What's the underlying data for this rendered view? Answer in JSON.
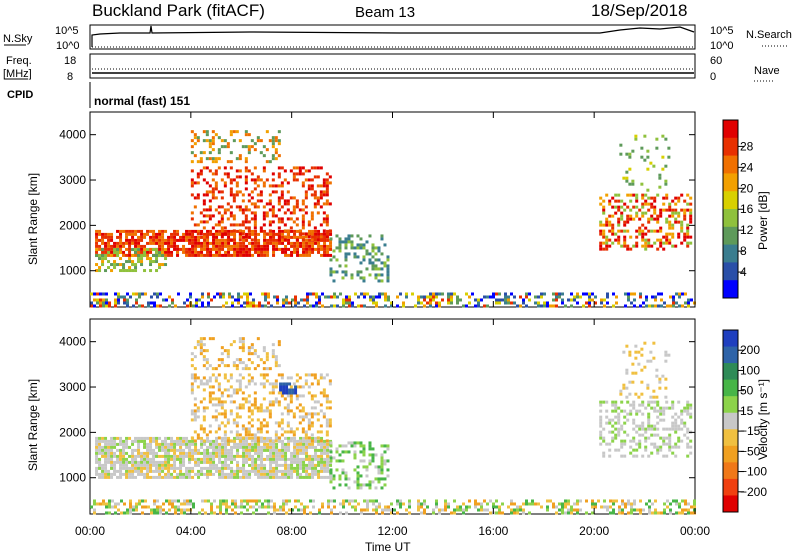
{
  "header": {
    "station": "Buckland Park (fitACF)",
    "beam": "Beam 13",
    "date": "18/Sep/2018"
  },
  "status_panels": {
    "nsky_label": "N.Sky",
    "nsearch_label": "N.Search",
    "freq_label": "Freq.",
    "freq_unit": "[MHz]",
    "nave_label": "Nave",
    "cpid_label": "CPID",
    "cpid_value": "normal (fast) 151",
    "nsky_ticks": [
      "10^5",
      "10^0"
    ],
    "nsearch_ticks": [
      "10^5",
      "10^0"
    ],
    "freq_ticks": [
      "18",
      "8"
    ],
    "nave_ticks": [
      "60",
      "0"
    ]
  },
  "chart_data": [
    {
      "type": "heatmap",
      "title": "",
      "xlabel": "Time UT",
      "ylabel": "Slant Range [km]",
      "x_ticks": [
        "00:00",
        "04:00",
        "08:00",
        "12:00",
        "16:00",
        "20:00",
        "00:00"
      ],
      "y_ticks": [
        "1000",
        "2000",
        "3000",
        "4000"
      ],
      "ylim": [
        200,
        4500
      ],
      "colorbar_label": "Power [dB]",
      "colorbar_ticks": [
        "4",
        "8",
        "12",
        "16",
        "20",
        "24",
        "28"
      ],
      "colorbar_colors": [
        "#0000ff",
        "#2a4fa8",
        "#3a7d8f",
        "#5e9a5a",
        "#8fc13c",
        "#d8d000",
        "#f2a000",
        "#f07000",
        "#e83000",
        "#e00000"
      ]
    },
    {
      "type": "heatmap",
      "title": "",
      "xlabel": "Time UT",
      "ylabel": "Slant Range [km]",
      "x_ticks": [
        "00:00",
        "04:00",
        "08:00",
        "12:00",
        "16:00",
        "20:00",
        "00:00"
      ],
      "y_ticks": [
        "1000",
        "2000",
        "3000",
        "4000"
      ],
      "ylim": [
        200,
        4500
      ],
      "colorbar_label": "Velocity [m s⁻¹]",
      "colorbar_ticks": [
        "200",
        "100",
        "50",
        "15",
        "−15",
        "−50",
        "−100",
        "−200"
      ],
      "colorbar_colors": [
        "#1f3fbf",
        "#2e63a8",
        "#2e8b57",
        "#47b547",
        "#8cd34a",
        "#c8c8c8",
        "#f0c040",
        "#f0a020",
        "#f07818",
        "#f04010",
        "#e00000"
      ]
    }
  ],
  "xlabel": "Time UT"
}
